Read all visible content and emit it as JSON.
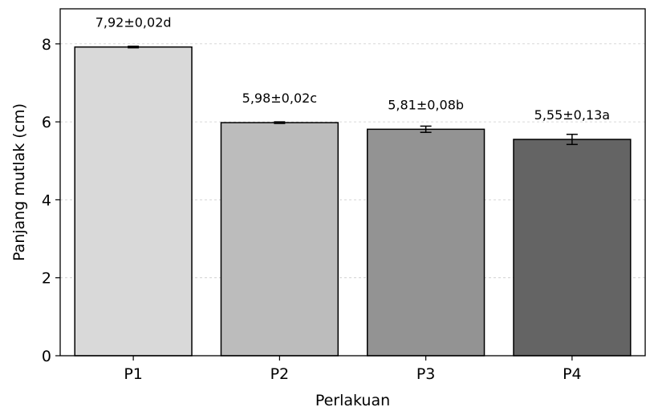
{
  "chart_data": {
    "type": "bar",
    "categories": [
      "P1",
      "P2",
      "P3",
      "P4"
    ],
    "values": [
      7.92,
      5.98,
      5.81,
      5.55
    ],
    "errors": [
      0.02,
      0.02,
      0.08,
      0.13
    ],
    "data_labels": [
      "7,92±0,02d",
      "5,98±0,02c",
      "5,81±0,08b",
      "5,55±0,13a"
    ],
    "bar_colors": [
      "#d9d9d9",
      "#bcbcbc",
      "#939393",
      "#646464"
    ],
    "xlabel": "Perlakuan",
    "ylabel": "Panjang mutlak (cm)",
    "ylim": [
      0,
      8.9
    ],
    "yticks": [
      0,
      2,
      4,
      6,
      8
    ],
    "ytick_labels": [
      "0",
      "2",
      "4",
      "6",
      "8"
    ],
    "grid": "y-dashed",
    "legend": "none"
  }
}
